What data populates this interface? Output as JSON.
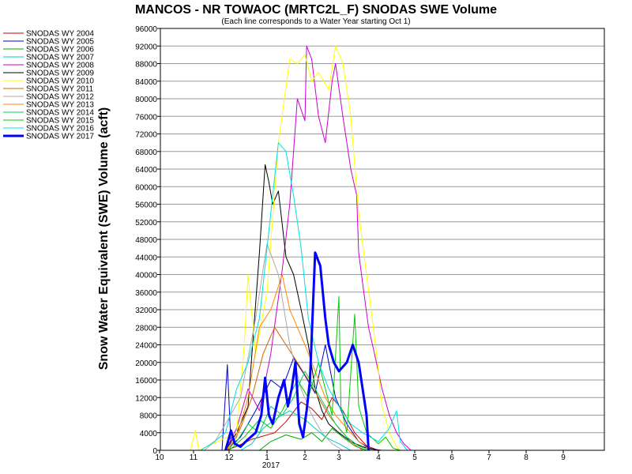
{
  "chart_data": {
    "type": "line",
    "title": "MANCOS - NR TOWAOC (MRTC2L_F) SNODAS SWE Volume",
    "subtitle": "(Each line corresponds to a Water Year starting Oct 1)",
    "ylabel": "Snow Water Equivalent (SWE) Volume (acft)",
    "xlabel": "",
    "ylim": [
      0,
      96000
    ],
    "y_ticks": [
      0,
      4000,
      8000,
      12000,
      16000,
      20000,
      24000,
      28000,
      32000,
      36000,
      40000,
      44000,
      48000,
      52000,
      56000,
      60000,
      64000,
      68000,
      72000,
      76000,
      80000,
      84000,
      88000,
      92000,
      96000
    ],
    "x_range": [
      10,
      10.98
    ],
    "x_tick_labels": [
      "10",
      "11",
      "12",
      "1",
      "2",
      "3",
      "4",
      "5",
      "6",
      "7",
      "8",
      "9"
    ],
    "x_year_label": "2017",
    "grid": true,
    "legend_position": "left",
    "series": [
      {
        "name": "SNODAS WY 2004",
        "color": "#cc0000",
        "width": 1,
        "points": [
          [
            11.9,
            0
          ],
          [
            12.2,
            900
          ],
          [
            12.6,
            2500
          ],
          [
            1.2,
            4000
          ],
          [
            1.5,
            6500
          ],
          [
            1.9,
            11000
          ],
          [
            2.2,
            9500
          ],
          [
            2.5,
            7000
          ],
          [
            2.8,
            12000
          ],
          [
            3.1,
            9000
          ],
          [
            3.4,
            4000
          ],
          [
            3.7,
            1000
          ],
          [
            4.0,
            0
          ]
        ]
      },
      {
        "name": "SNODAS WY 2005",
        "color": "#0000cc",
        "width": 1,
        "points": [
          [
            11.8,
            0
          ],
          [
            11.95,
            19500
          ],
          [
            12.05,
            1000
          ],
          [
            12.3,
            3000
          ],
          [
            12.7,
            9000
          ],
          [
            1.1,
            16000
          ],
          [
            1.4,
            14000
          ],
          [
            1.7,
            21000
          ],
          [
            2.0,
            17000
          ],
          [
            2.3,
            13000
          ],
          [
            2.6,
            24000
          ],
          [
            2.9,
            12000
          ],
          [
            3.2,
            6000
          ],
          [
            3.5,
            2000
          ],
          [
            3.8,
            300
          ],
          [
            4.1,
            0
          ]
        ]
      },
      {
        "name": "SNODAS WY 2006",
        "color": "#00aa00",
        "width": 1,
        "points": [
          [
            12.8,
            0
          ],
          [
            1.1,
            2000
          ],
          [
            1.5,
            3500
          ],
          [
            1.9,
            2500
          ],
          [
            2.2,
            4000
          ],
          [
            2.5,
            2000
          ],
          [
            2.8,
            5000
          ],
          [
            3.1,
            3000
          ],
          [
            3.4,
            1000
          ],
          [
            3.7,
            0
          ]
        ]
      },
      {
        "name": "SNODAS WY 2007",
        "color": "#00cccc",
        "width": 1,
        "points": [
          [
            12.3,
            0
          ],
          [
            12.6,
            1500
          ],
          [
            12.9,
            5000
          ],
          [
            1.2,
            7000
          ],
          [
            1.6,
            9000
          ],
          [
            2.0,
            7000
          ],
          [
            2.3,
            5000
          ],
          [
            2.6,
            3000
          ],
          [
            3.0,
            1500
          ],
          [
            3.3,
            0
          ]
        ]
      },
      {
        "name": "SNODAS WY 2008",
        "color": "#cc00cc",
        "width": 1,
        "points": [
          [
            11.9,
            0
          ],
          [
            12.2,
            5000
          ],
          [
            12.5,
            14000
          ],
          [
            12.8,
            9000
          ],
          [
            1.1,
            22000
          ],
          [
            1.4,
            41000
          ],
          [
            1.6,
            56000
          ],
          [
            1.8,
            80000
          ],
          [
            2.0,
            75000
          ],
          [
            2.05,
            92000
          ],
          [
            2.2,
            89000
          ],
          [
            2.4,
            76000
          ],
          [
            2.6,
            70000
          ],
          [
            2.8,
            84000
          ],
          [
            2.9,
            88000
          ],
          [
            3.1,
            76000
          ],
          [
            3.3,
            64000
          ],
          [
            3.45,
            58000
          ],
          [
            3.5,
            45000
          ],
          [
            3.6,
            38000
          ],
          [
            3.75,
            28000
          ],
          [
            3.9,
            22000
          ],
          [
            4.1,
            14000
          ],
          [
            4.3,
            8000
          ],
          [
            4.5,
            4000
          ],
          [
            4.7,
            1500
          ],
          [
            4.9,
            0
          ]
        ]
      },
      {
        "name": "SNODAS WY 2009",
        "color": "#000000",
        "width": 1,
        "points": [
          [
            11.9,
            0
          ],
          [
            12.2,
            4000
          ],
          [
            12.5,
            10000
          ],
          [
            12.8,
            45000
          ],
          [
            12.95,
            65000
          ],
          [
            1.05,
            61000
          ],
          [
            1.15,
            56000
          ],
          [
            1.3,
            59000
          ],
          [
            1.5,
            44000
          ],
          [
            1.7,
            40000
          ],
          [
            1.9,
            32000
          ],
          [
            2.1,
            24000
          ],
          [
            2.3,
            14000
          ],
          [
            2.5,
            9000
          ],
          [
            2.7,
            6000
          ],
          [
            3.0,
            4000
          ],
          [
            3.3,
            2000
          ],
          [
            3.6,
            800
          ],
          [
            4.0,
            0
          ]
        ]
      },
      {
        "name": "SNODAS WY 2010",
        "color": "#ffff00",
        "width": 1,
        "points": [
          [
            10.9,
            0
          ],
          [
            11.05,
            4500
          ],
          [
            11.15,
            0
          ],
          [
            12.2,
            4000
          ],
          [
            12.4,
            24000
          ],
          [
            12.5,
            40000
          ],
          [
            12.7,
            22000
          ],
          [
            1.0,
            36000
          ],
          [
            1.3,
            70000
          ],
          [
            1.6,
            89000
          ],
          [
            1.8,
            88000
          ],
          [
            2.0,
            90000
          ],
          [
            2.2,
            84000
          ],
          [
            2.4,
            86000
          ],
          [
            2.7,
            82000
          ],
          [
            2.9,
            92000
          ],
          [
            3.1,
            88000
          ],
          [
            3.3,
            76000
          ],
          [
            3.5,
            54000
          ],
          [
            3.7,
            40000
          ],
          [
            3.9,
            26000
          ],
          [
            4.0,
            18000
          ],
          [
            4.1,
            10000
          ],
          [
            4.3,
            4000
          ],
          [
            4.5,
            800
          ],
          [
            4.6,
            0
          ]
        ]
      },
      {
        "name": "SNODAS WY 2011",
        "color": "#cc6600",
        "width": 1,
        "points": [
          [
            12.0,
            0
          ],
          [
            12.3,
            5000
          ],
          [
            12.6,
            12000
          ],
          [
            12.9,
            22000
          ],
          [
            1.2,
            28000
          ],
          [
            1.5,
            24000
          ],
          [
            1.8,
            20000
          ],
          [
            2.1,
            16000
          ],
          [
            2.4,
            12000
          ],
          [
            2.7,
            8000
          ],
          [
            3.0,
            5000
          ],
          [
            3.3,
            2000
          ],
          [
            3.6,
            0
          ]
        ]
      },
      {
        "name": "SNODAS WY 2012",
        "color": "#aaaaaa",
        "width": 1,
        "points": [
          [
            11.3,
            0
          ],
          [
            11.6,
            2000
          ],
          [
            11.9,
            6000
          ],
          [
            12.3,
            12000
          ],
          [
            12.7,
            30000
          ],
          [
            1.0,
            47000
          ],
          [
            1.3,
            40000
          ],
          [
            1.6,
            24000
          ],
          [
            1.9,
            14000
          ],
          [
            2.2,
            8000
          ],
          [
            2.5,
            4000
          ],
          [
            2.8,
            1500
          ],
          [
            3.1,
            0
          ]
        ]
      },
      {
        "name": "SNODAS WY 2013",
        "color": "#ff8800",
        "width": 1,
        "points": [
          [
            11.9,
            0
          ],
          [
            12.2,
            3000
          ],
          [
            12.5,
            12000
          ],
          [
            12.8,
            28000
          ],
          [
            1.1,
            32000
          ],
          [
            1.4,
            40000
          ],
          [
            1.6,
            32000
          ],
          [
            1.8,
            28000
          ],
          [
            2.0,
            24000
          ],
          [
            2.3,
            18000
          ],
          [
            2.6,
            12000
          ],
          [
            2.9,
            8000
          ],
          [
            3.2,
            5000
          ],
          [
            3.5,
            2000
          ],
          [
            3.8,
            0
          ]
        ]
      },
      {
        "name": "SNODAS WY 2014",
        "color": "#00cc66",
        "width": 1,
        "points": [
          [
            11.9,
            0
          ],
          [
            12.2,
            2000
          ],
          [
            12.5,
            6000
          ],
          [
            12.8,
            4000
          ],
          [
            1.1,
            10000
          ],
          [
            1.4,
            8000
          ],
          [
            1.7,
            12000
          ],
          [
            2.0,
            18000
          ],
          [
            2.3,
            14000
          ],
          [
            2.6,
            10000
          ],
          [
            2.9,
            6000
          ],
          [
            3.2,
            3000
          ],
          [
            3.5,
            1000
          ],
          [
            3.8,
            0
          ]
        ]
      },
      {
        "name": "SNODAS WY 2015",
        "color": "#00cc00",
        "width": 1,
        "points": [
          [
            12.0,
            0
          ],
          [
            12.4,
            3000
          ],
          [
            12.8,
            7000
          ],
          [
            1.1,
            5000
          ],
          [
            1.4,
            9000
          ],
          [
            1.8,
            16000
          ],
          [
            2.1,
            12000
          ],
          [
            2.4,
            20000
          ],
          [
            2.6,
            14000
          ],
          [
            2.8,
            8000
          ],
          [
            3.0,
            35000
          ],
          [
            3.05,
            10000
          ],
          [
            3.2,
            4000
          ],
          [
            3.4,
            31000
          ],
          [
            3.5,
            10000
          ],
          [
            3.7,
            4000
          ],
          [
            4.0,
            1500
          ],
          [
            4.2,
            3000
          ],
          [
            4.4,
            500
          ],
          [
            4.6,
            0
          ]
        ]
      },
      {
        "name": "SNODAS WY 2016",
        "color": "#00e0e0",
        "width": 1,
        "points": [
          [
            11.2,
            0
          ],
          [
            11.5,
            1500
          ],
          [
            11.9,
            4000
          ],
          [
            12.2,
            14000
          ],
          [
            12.5,
            20000
          ],
          [
            12.8,
            30000
          ],
          [
            1.0,
            46000
          ],
          [
            1.2,
            62000
          ],
          [
            1.3,
            70000
          ],
          [
            1.5,
            68000
          ],
          [
            1.7,
            58000
          ],
          [
            1.9,
            46000
          ],
          [
            2.1,
            30000
          ],
          [
            2.4,
            20000
          ],
          [
            2.7,
            14000
          ],
          [
            3.0,
            10000
          ],
          [
            3.3,
            6000
          ],
          [
            3.6,
            4000
          ],
          [
            4.0,
            2000
          ],
          [
            4.3,
            5000
          ],
          [
            4.5,
            9000
          ],
          [
            4.6,
            2000
          ],
          [
            4.8,
            0
          ]
        ]
      },
      {
        "name": "SNODAS WY 2017",
        "color": "#0000ff",
        "width": 3,
        "points": [
          [
            11.9,
            0
          ],
          [
            12.05,
            4500
          ],
          [
            12.15,
            1500
          ],
          [
            12.3,
            800
          ],
          [
            12.5,
            2500
          ],
          [
            12.7,
            4000
          ],
          [
            12.85,
            8000
          ],
          [
            12.95,
            16500
          ],
          [
            1.05,
            8000
          ],
          [
            1.15,
            6000
          ],
          [
            1.3,
            12000
          ],
          [
            1.45,
            16000
          ],
          [
            1.55,
            10000
          ],
          [
            1.65,
            14000
          ],
          [
            1.75,
            20000
          ],
          [
            1.85,
            6000
          ],
          [
            1.95,
            3000
          ],
          [
            2.05,
            9000
          ],
          [
            2.15,
            16000
          ],
          [
            2.3,
            45000
          ],
          [
            2.45,
            42000
          ],
          [
            2.6,
            30000
          ],
          [
            2.7,
            24000
          ],
          [
            2.85,
            20000
          ],
          [
            3.0,
            18000
          ],
          [
            3.2,
            20000
          ],
          [
            3.35,
            24000
          ],
          [
            3.5,
            20000
          ],
          [
            3.6,
            14000
          ],
          [
            3.7,
            8000
          ],
          [
            3.75,
            0
          ]
        ]
      }
    ]
  }
}
